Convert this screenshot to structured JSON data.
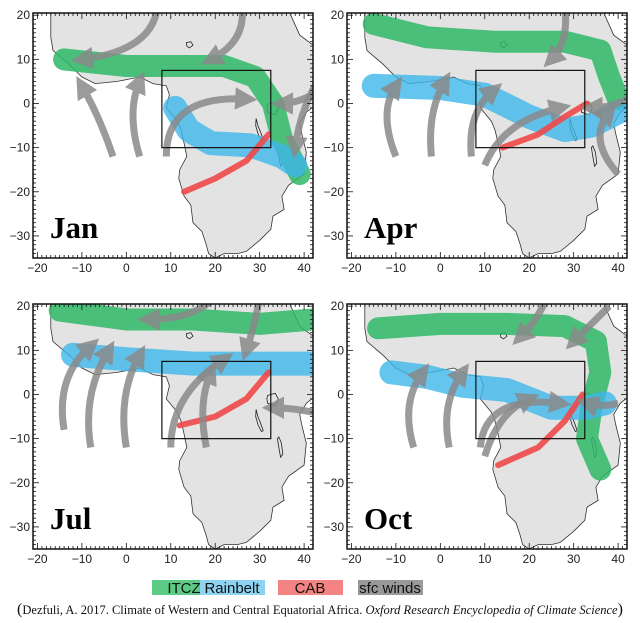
{
  "panels": [
    {
      "month": "Jan"
    },
    {
      "month": "Apr"
    },
    {
      "month": "Jul"
    },
    {
      "month": "Oct"
    }
  ],
  "axes": {
    "x_ticks": [
      "−20",
      "−10",
      "0",
      "10",
      "20",
      "30",
      "40"
    ],
    "y_ticks": [
      "20",
      "10",
      "0",
      "−10",
      "−20",
      "−30"
    ],
    "xlim": [
      -21,
      42
    ],
    "ylim": [
      -35,
      20.5
    ]
  },
  "legend": [
    {
      "label": "ITCZ",
      "color": "#3dbf72"
    },
    {
      "label": "Rainbelt",
      "color": "#55c4ee"
    },
    {
      "label": "CAB",
      "color": "#f27777"
    },
    {
      "label": "sfc winds",
      "color": "#8c8c8c"
    }
  ],
  "caption": {
    "open": "(",
    "plain": "Dezfuli, A. 2017. Climate of Western and Central Equatorial Africa. ",
    "italic": "Oxford Research Encyclopedia of Climate Science",
    "close": ")"
  },
  "colors": {
    "land": "#e3e3e3",
    "itcz": "#2fb866",
    "rainbelt": "#3db6ea",
    "cab": "#f04848",
    "winds": "#8a8a8a"
  }
}
